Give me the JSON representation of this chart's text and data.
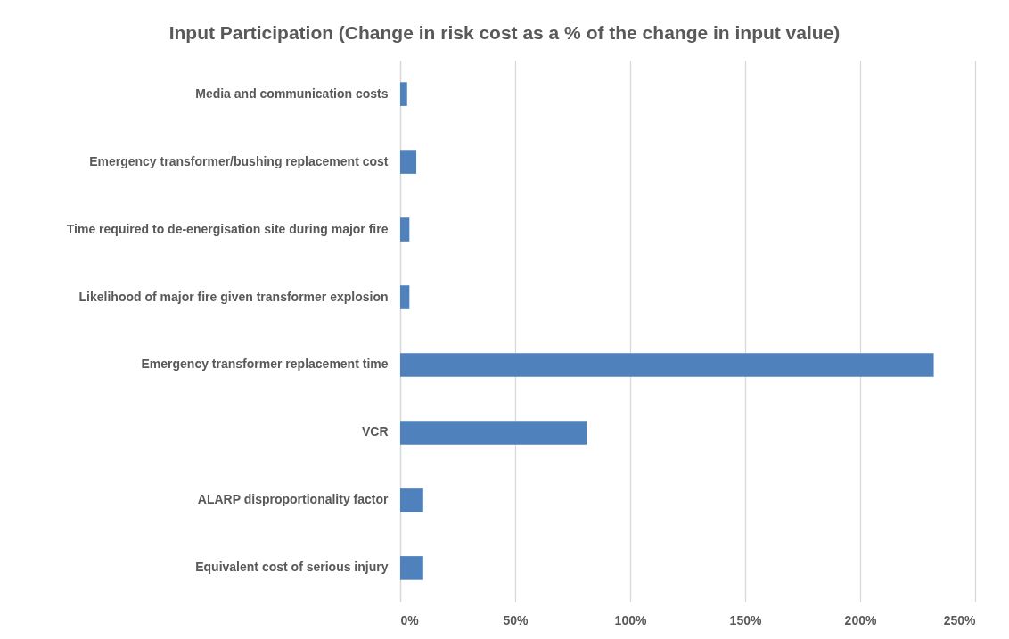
{
  "chart_data": {
    "type": "bar",
    "orientation": "horizontal",
    "title": "Input Participation (Change in risk cost as a % of the change in input value)",
    "categories": [
      "Media and communication costs",
      "Emergency transformer/bushing replacement cost",
      "Time required to de-energisation site during major fire",
      "Likelihood of major fire given transformer explosion",
      "Emergency transformer replacement time",
      "VCR",
      "ALARP disproportionality factor",
      "Equivalent cost of serious injury"
    ],
    "values": [
      3,
      7,
      4,
      4,
      232,
      81,
      10,
      10
    ],
    "color": "#4f81bd",
    "xlim": [
      0,
      250
    ],
    "xticks": [
      {
        "value": 0,
        "label": "0%"
      },
      {
        "value": 50,
        "label": "50%"
      },
      {
        "value": 100,
        "label": "100%"
      },
      {
        "value": 150,
        "label": "150%"
      },
      {
        "value": 200,
        "label": "200%"
      },
      {
        "value": 250,
        "label": "250%"
      }
    ],
    "grid": "x"
  }
}
